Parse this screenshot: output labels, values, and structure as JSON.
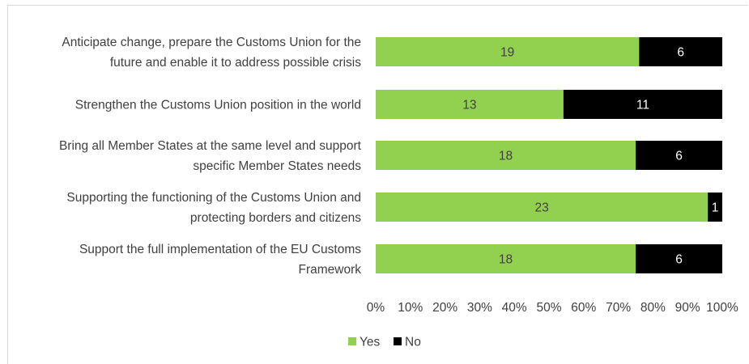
{
  "chart_data": {
    "type": "bar",
    "orientation": "horizontal",
    "stacked": "percent",
    "categories": [
      [
        "Anticipate change, prepare the Customs Union for the",
        "future and enable it to address possible crisis"
      ],
      [
        "Strengthen the Customs Union position in the world"
      ],
      [
        "Bring all Member States at the same level and support",
        "specific Member States needs"
      ],
      [
        "Supporting the functioning of the Customs Union and",
        "protecting borders and citizens"
      ],
      [
        "Support the full implementation of the EU Customs",
        "Framework"
      ]
    ],
    "series": [
      {
        "name": "Yes",
        "color": "#92d050",
        "label_color": "#404040",
        "values": [
          19,
          13,
          18,
          23,
          18
        ]
      },
      {
        "name": "No",
        "color": "#000000",
        "label_color": "#ffffff",
        "values": [
          6,
          11,
          6,
          1,
          6
        ]
      }
    ],
    "xticks": [
      "0%",
      "10%",
      "20%",
      "30%",
      "40%",
      "50%",
      "60%",
      "70%",
      "80%",
      "90%",
      "100%"
    ],
    "xlim": [
      0,
      100
    ],
    "grid": false,
    "legend_position": "bottom"
  }
}
